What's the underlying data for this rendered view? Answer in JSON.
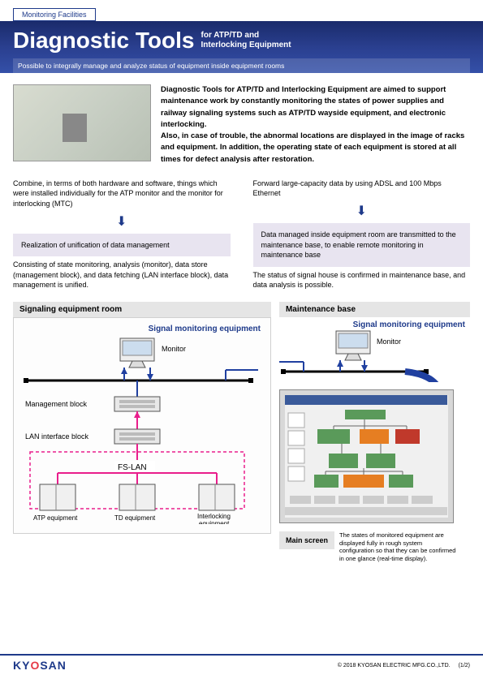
{
  "tag": "Monitoring Facilities",
  "title": {
    "main": "Diagnostic Tools",
    "sub1": "for ATP/TD and",
    "sub2": "Interlocking Equipment"
  },
  "subtitle": "Possible to integrally manage and analyze status of equipment inside equipment rooms",
  "intro": "Diagnostic Tools for ATP/TD and Interlocking Equipment are aimed to support maintenance work by constantly monitoring the states of power supplies and railway signaling systems such as ATP/TD wayside equipment, and electronic interlocking.\nAlso, in case of trouble, the abnormal locations are displayed in the image of racks and equipment. In addition, the operating state of each equipment is stored at all times for defect analysis after restoration.",
  "left": {
    "top": "Combine, in terms of both hardware and software, things which were installed individually for the ATP monitor and the monitor for interlocking (MTC)",
    "box": "Realization of unification of data management",
    "bottom": "Consisting of state monitoring, analysis (monitor), data store (management block), and data fetching (LAN interface block), data management is unified."
  },
  "right": {
    "top": "Forward large-capacity data by using ADSL and 100 Mbps Ethernet",
    "box": "Data managed inside equipment room are transmitted to the maintenance base, to enable remote monitoring in maintenance base",
    "bottom": "The status of signal house is confirmed in maintenance base, and data analysis is possible."
  },
  "diag": {
    "left_title": "Signaling equipment room",
    "right_title": "Maintenance base",
    "sig_label": "Signal monitoring equipment",
    "monitor": "Monitor",
    "mgmt": "Management block",
    "lan": "LAN interface block",
    "fslan": "FS-LAN",
    "atp": "ATP equipment",
    "td": "TD equipment",
    "ilk": "Interlocking equipment"
  },
  "main_screen": {
    "tag": "Main screen",
    "text": "The states of monitored equipment are displayed fully in rough system configuration so that they can be confirmed in one glance (real-time display)."
  },
  "footer": {
    "logo_k": "KY",
    "logo_o": "O",
    "logo_rest": "SAN",
    "copyright": "© 2018 KYOSAN ELECTRIC MFG.CO.,LTD.",
    "page": "(1/2)"
  },
  "colors": {
    "navy": "#1e3a8a",
    "lav": "#e8e4f0",
    "gray_bg": "#e5e5e5",
    "pink": "#e91e8c",
    "blue_line": "#2040a0",
    "green_node": "#5a9a5a",
    "orange_node": "#e67e22",
    "red_node": "#c0392b"
  }
}
